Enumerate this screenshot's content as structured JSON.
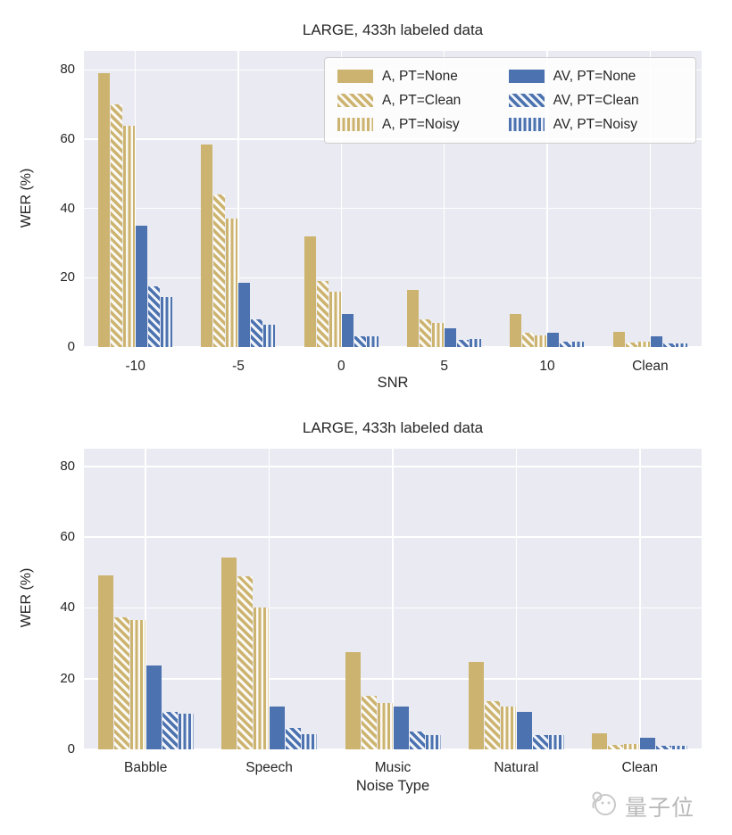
{
  "watermark": {
    "text": "量子位",
    "icon": "qbitai-robot-logo"
  },
  "palette": {
    "audio_series": "#CCB470",
    "audiovisual_series": "#4C72B0",
    "plot_background": "#EAEAF2",
    "gridline": "#FFFFFF",
    "text": "#262626"
  },
  "chart_data": [
    {
      "type": "bar",
      "title": "LARGE, 433h labeled data",
      "xlabel": "SNR",
      "ylabel": "WER (%)",
      "categories": [
        "-10",
        "-5",
        "0",
        "5",
        "10",
        "Clean"
      ],
      "yticks": [
        0,
        20,
        40,
        60,
        80
      ],
      "ylim": [
        0,
        85.5
      ],
      "grid": true,
      "legend_position": "upper right, 2 columns",
      "series": [
        {
          "name": "A, PT=None",
          "color": "#CCB470",
          "hatch": "none",
          "values": [
            79,
            58.5,
            32,
            16.5,
            9.5,
            4.5
          ]
        },
        {
          "name": "A, PT=Clean",
          "color": "#CCB470",
          "hatch": "diag",
          "values": [
            70,
            44,
            19,
            8,
            4,
            1.2
          ]
        },
        {
          "name": "A, PT=Noisy",
          "color": "#CCB470",
          "hatch": "vert",
          "values": [
            64,
            37,
            16,
            7,
            3.3,
            1.5
          ]
        },
        {
          "name": "AV, PT=None",
          "color": "#4C72B0",
          "hatch": "none",
          "values": [
            35,
            18.5,
            9.5,
            5.5,
            4,
            3.2
          ]
        },
        {
          "name": "AV, PT=Clean",
          "color": "#4C72B0",
          "hatch": "diag",
          "values": [
            17.5,
            8,
            3.2,
            2.1,
            1.6,
            1
          ]
        },
        {
          "name": "AV, PT=Noisy",
          "color": "#4C72B0",
          "hatch": "vert",
          "values": [
            14.5,
            6.5,
            3,
            2.2,
            1.5,
            1
          ]
        }
      ]
    },
    {
      "type": "bar",
      "title": "LARGE, 433h labeled data",
      "xlabel": "Noise Type",
      "ylabel": "WER (%)",
      "categories": [
        "Babble",
        "Speech",
        "Music",
        "Natural",
        "Clean"
      ],
      "yticks": [
        0,
        20,
        40,
        60,
        80
      ],
      "ylim": [
        0,
        85
      ],
      "grid": true,
      "legend_position": "none",
      "series": [
        {
          "name": "A, PT=None",
          "color": "#CCB470",
          "hatch": "none",
          "values": [
            49.3,
            54.3,
            27.5,
            24.7,
            4.5
          ]
        },
        {
          "name": "A, PT=Clean",
          "color": "#CCB470",
          "hatch": "diag",
          "values": [
            37.3,
            49,
            15.2,
            13.5,
            1.2
          ]
        },
        {
          "name": "A, PT=Noisy",
          "color": "#CCB470",
          "hatch": "vert",
          "values": [
            36.5,
            40.2,
            13.2,
            12.2,
            1.5
          ]
        },
        {
          "name": "AV, PT=None",
          "color": "#4C72B0",
          "hatch": "none",
          "values": [
            23.8,
            12.2,
            12.2,
            10.5,
            3.2
          ]
        },
        {
          "name": "AV, PT=Clean",
          "color": "#4C72B0",
          "hatch": "diag",
          "values": [
            10.5,
            6,
            5,
            4,
            1
          ]
        },
        {
          "name": "AV, PT=Noisy",
          "color": "#4C72B0",
          "hatch": "vert",
          "values": [
            10,
            4.2,
            4,
            4,
            1
          ]
        }
      ]
    }
  ]
}
